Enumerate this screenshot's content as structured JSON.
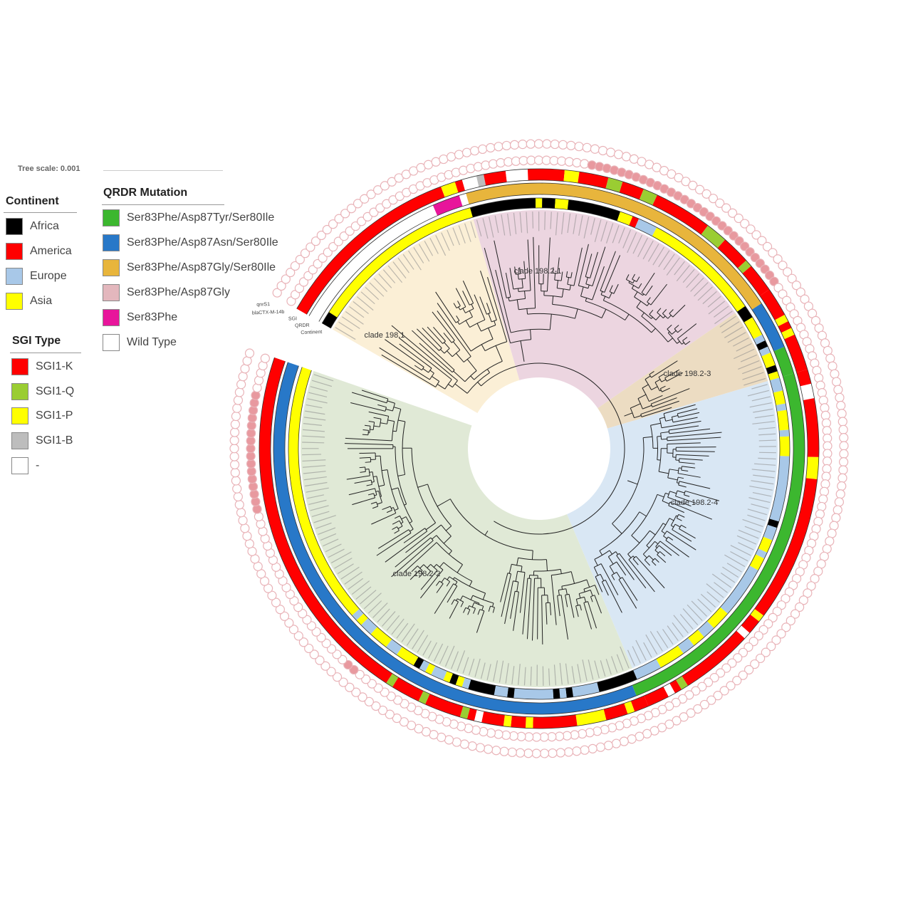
{
  "tree_scale": {
    "label": "Tree scale: 0.001"
  },
  "legends": {
    "continent": {
      "title": "Continent",
      "items": [
        {
          "label": "Africa",
          "color": "#000000"
        },
        {
          "label": "America",
          "color": "#ff0000"
        },
        {
          "label": "Europe",
          "color": "#a8c8e8"
        },
        {
          "label": "Asia",
          "color": "#ffff00"
        }
      ]
    },
    "sgi_type": {
      "title": "SGI Type",
      "items": [
        {
          "label": "SGI1-K",
          "color": "#ff0000"
        },
        {
          "label": "SGI1-Q",
          "color": "#9acd32"
        },
        {
          "label": "SGI1-P",
          "color": "#ffff00"
        },
        {
          "label": "SGI1-B",
          "color": "#bdbdbd"
        },
        {
          "label": "-",
          "color": "#ffffff"
        }
      ]
    },
    "qrdr": {
      "title": "QRDR Mutation",
      "items": [
        {
          "label": "Ser83Phe/Asp87Tyr/Ser80Ile",
          "color": "#3cb72f"
        },
        {
          "label": "Ser83Phe/Asp87Asn/Ser80Ile",
          "color": "#2878c8"
        },
        {
          "label": "Ser83Phe/Asp87Gly/Ser80Ile",
          "color": "#e8b53c"
        },
        {
          "label": "Ser83Phe/Asp87Gly",
          "color": "#e3b7bd"
        },
        {
          "label": "Ser83Phe",
          "color": "#e8159b"
        },
        {
          "label": "Wild Type",
          "color": "#ffffff"
        }
      ]
    }
  },
  "ring_labels": {
    "continent": "Continent",
    "qrdr": "QRDR",
    "sgi": "SGI",
    "blactx": "blaCTX-M-14b",
    "qnrs1": "qnrS1"
  },
  "clades": [
    {
      "label": "clade 198.1",
      "tips": 29,
      "color": "#fbefd6"
    },
    {
      "label": "clade 198.2-1",
      "tips": 47,
      "color": "#ecd5e0"
    },
    {
      "label": "clade 198.2-3",
      "tips": 12,
      "color": "#ecdcc2"
    },
    {
      "label": "clade 198.2-4",
      "tips": 55,
      "color": "#d9e7f4"
    },
    {
      "label": "clade 198.2-2",
      "tips": 87,
      "color": "#e0e9d6"
    }
  ],
  "rings": {
    "continent": [
      [
        "Africa",
        2
      ],
      [
        "Asia",
        27
      ],
      [
        "Africa",
        10
      ],
      [
        "Asia",
        1
      ],
      [
        "Africa",
        2
      ],
      [
        "Asia",
        2
      ],
      [
        "Africa",
        8
      ],
      [
        "Asia",
        2
      ],
      [
        "America",
        1
      ],
      [
        "Europe",
        3
      ],
      [
        "Asia",
        18
      ],
      [
        "Africa",
        2
      ],
      [
        "Asia",
        3
      ],
      [
        "Europe",
        1
      ],
      [
        "Africa",
        1
      ],
      [
        "Europe",
        1
      ],
      [
        "Asia",
        2
      ],
      [
        "Africa",
        1
      ],
      [
        "Asia",
        1
      ],
      [
        "Europe",
        2
      ],
      [
        "Asia",
        2
      ],
      [
        "Europe",
        1
      ],
      [
        "Asia",
        3
      ],
      [
        "Europe",
        1
      ],
      [
        "Asia",
        3
      ],
      [
        "Europe",
        10
      ],
      [
        "Africa",
        1
      ],
      [
        "Europe",
        2
      ],
      [
        "Asia",
        2
      ],
      [
        "Europe",
        1
      ],
      [
        "Asia",
        2
      ],
      [
        "Europe",
        8
      ],
      [
        "Asia",
        3
      ],
      [
        "Europe",
        2
      ],
      [
        "Asia",
        2
      ],
      [
        "Europe",
        2
      ],
      [
        "Asia",
        4
      ],
      [
        "Europe",
        4
      ],
      [
        "Africa",
        6
      ],
      [
        "Europe",
        4
      ],
      [
        "Africa",
        1
      ],
      [
        "Europe",
        1
      ],
      [
        "Africa",
        1
      ],
      [
        "Europe",
        6
      ],
      [
        "Africa",
        1
      ],
      [
        "Europe",
        2
      ],
      [
        "Africa",
        4
      ],
      [
        "Europe",
        1
      ],
      [
        "Asia",
        1
      ],
      [
        "Africa",
        1
      ],
      [
        "Asia",
        1
      ],
      [
        "Europe",
        2
      ],
      [
        "Asia",
        1
      ],
      [
        "Europe",
        1
      ],
      [
        "Africa",
        1
      ],
      [
        "Asia",
        3
      ],
      [
        "Europe",
        2
      ],
      [
        "Asia",
        3
      ],
      [
        "Europe",
        2
      ],
      [
        "Asia",
        1
      ],
      [
        "Europe",
        1
      ],
      [
        "Asia",
        40
      ]
    ],
    "qrdr": [
      [
        "Wild Type",
        24
      ],
      [
        "Ser83Phe",
        4
      ],
      [
        "Wild Type",
        1
      ],
      [
        "Ser83Phe/Asp87Gly/Ser80Ile",
        48
      ],
      [
        "Ser83Phe/Asp87Asn/Ser80Ile",
        7
      ],
      [
        "Ser83Phe/Asp87Tyr/Ser80Ile",
        4
      ],
      [
        "Ser83Phe/Asp87Tyr/Ser80Ile",
        56
      ],
      [
        "Ser83Phe/Asp87Asn/Ser80Ile",
        86
      ]
    ],
    "sgi": [
      [
        "SGI1-K",
        26
      ],
      [
        "SGI1-P",
        2
      ],
      [
        "SGI1-K",
        1
      ],
      [
        "-",
        2
      ],
      [
        "SGI1-B",
        1
      ],
      [
        "SGI1-K",
        3
      ],
      [
        "-",
        3
      ],
      [
        "SGI1-K",
        5
      ],
      [
        "SGI1-P",
        2
      ],
      [
        "SGI1-K",
        4
      ],
      [
        "SGI1-Q",
        2
      ],
      [
        "SGI1-K",
        3
      ],
      [
        "SGI1-Q",
        2
      ],
      [
        "SGI1-K",
        8
      ],
      [
        "SGI1-Q",
        3
      ],
      [
        "SGI1-K",
        4
      ],
      [
        "SGI1-Q",
        1
      ],
      [
        "SGI1-K",
        4
      ],
      [
        "SGI1-K",
        4
      ],
      [
        "SGI1-P",
        1
      ],
      [
        "SGI1-K",
        1
      ],
      [
        "SGI1-P",
        1
      ],
      [
        "SGI1-K",
        5
      ],
      [
        "SGI1-K",
        2
      ],
      [
        "-",
        2
      ],
      [
        "SGI1-K",
        8
      ],
      [
        "SGI1-P",
        3
      ],
      [
        "SGI1-K",
        20
      ],
      [
        "SGI1-P",
        1
      ],
      [
        "SGI1-K",
        2
      ],
      [
        "-",
        1
      ],
      [
        "SGI1-K",
        10
      ],
      [
        "SGI1-Q",
        1
      ],
      [
        "SGI1-K",
        1
      ],
      [
        "-",
        1
      ],
      [
        "SGI1-K",
        3
      ],
      [
        "SGI1-K",
        2
      ],
      [
        "SGI1-P",
        1
      ],
      [
        "SGI1-K",
        3
      ],
      [
        "SGI1-P",
        4
      ],
      [
        "SGI1-K",
        6
      ],
      [
        "SGI1-P",
        1
      ],
      [
        "SGI1-K",
        2
      ],
      [
        "SGI1-P",
        1
      ],
      [
        "SGI1-K",
        3
      ],
      [
        "-",
        1
      ],
      [
        "SGI1-K",
        1
      ],
      [
        "SGI1-Q",
        1
      ],
      [
        "SGI1-K",
        5
      ],
      [
        "SGI1-Q",
        1
      ],
      [
        "SGI1-K",
        4
      ],
      [
        "SGI1-Q",
        1
      ],
      [
        "SGI1-K",
        50
      ]
    ],
    "blactx": [
      [
        false,
        46
      ],
      [
        true,
        30
      ],
      [
        false,
        108
      ],
      [
        true,
        2
      ],
      [
        false,
        23
      ],
      [
        true,
        16
      ],
      [
        false,
        5
      ]
    ],
    "qnrs1": [
      [
        false,
        230
      ]
    ]
  },
  "ring_colors": {
    "circle_stroke": "#e9b3b8",
    "circle_fill": "#e8999f"
  }
}
